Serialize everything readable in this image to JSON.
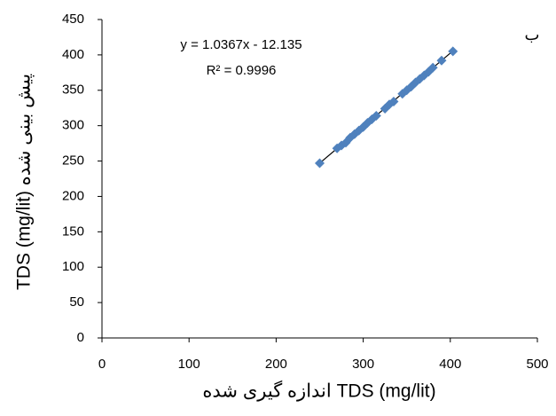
{
  "chart_data": {
    "type": "scatter",
    "x_label": "اندازه گیری شده TDS (mg/lit)",
    "y_label": "TDS (mg/lit) پیش بینی شده",
    "corner_label": "ب",
    "series": [
      {
        "color": "#4f81bd",
        "x": [
          250,
          270,
          275,
          280,
          285,
          290,
          295,
          300,
          305,
          310,
          315,
          325,
          330,
          335,
          345,
          350,
          355,
          360,
          365,
          370,
          375,
          380,
          390,
          403
        ],
        "values": [
          247,
          268,
          272,
          276,
          283,
          288,
          293,
          298,
          304,
          309,
          314,
          324,
          330,
          334,
          345,
          350,
          355,
          361,
          366,
          371,
          376,
          382,
          392,
          405
        ]
      }
    ],
    "trendline": {
      "equation": "y = 1.0367x - 12.135",
      "r2": "R² = 0.9996",
      "slope": 1.0367,
      "intercept": -12.135,
      "color": "#000000"
    },
    "xlim": [
      0,
      500
    ],
    "xticks": [
      0,
      100,
      200,
      300,
      400,
      500
    ],
    "ylim": [
      0,
      450
    ],
    "yticks": [
      0,
      50,
      100,
      150,
      200,
      250,
      300,
      350,
      400,
      450
    ],
    "grid": false
  }
}
